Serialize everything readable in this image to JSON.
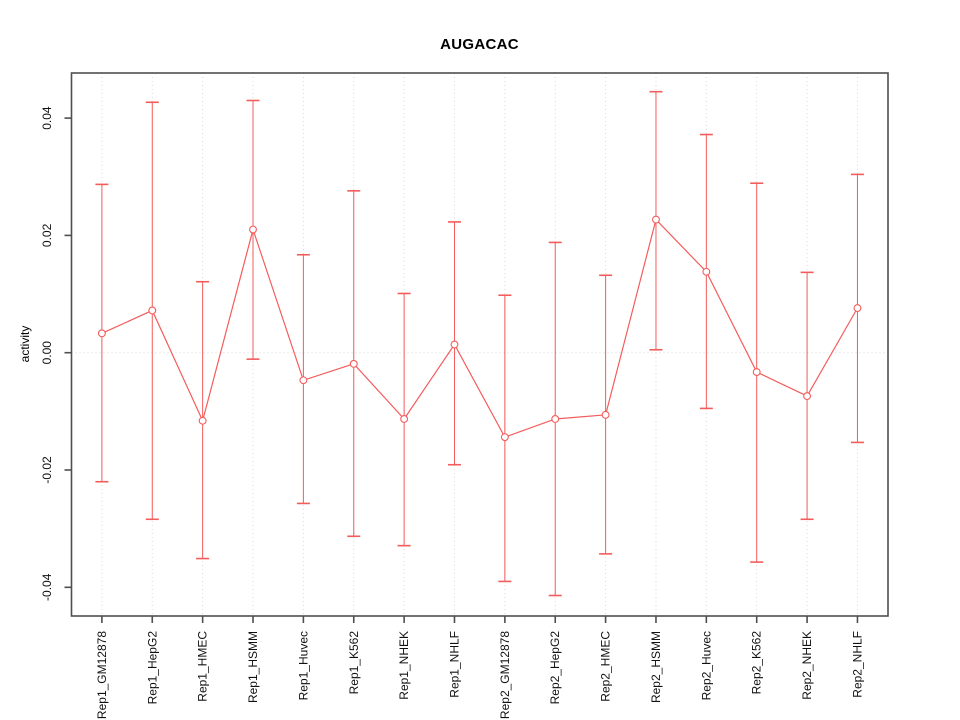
{
  "chart_data": {
    "type": "line",
    "title": "AUGACAC",
    "ylabel": "activity",
    "xlabel": "",
    "legend": "none",
    "grid": {
      "vertical_dotted_per_category": true,
      "horizontal_dotted_at_zero": true
    },
    "marker": "open-circle",
    "errorbars": true,
    "x": [
      "Rep1_GM12878",
      "Rep1_HepG2",
      "Rep1_HMEC",
      "Rep1_HSMM",
      "Rep1_Huvec",
      "Rep1_K562",
      "Rep1_NHEK",
      "Rep1_NHLF",
      "Rep2_GM12878",
      "Rep2_HepG2",
      "Rep2_HMEC",
      "Rep2_HSMM",
      "Rep2_Huvec",
      "Rep2_K562",
      "Rep2_NHEK",
      "Rep2_NHLF"
    ],
    "values": [
      0.0033,
      0.0072,
      -0.0116,
      0.021,
      -0.0047,
      -0.0019,
      -0.0113,
      0.0014,
      -0.0144,
      -0.0113,
      -0.0106,
      0.0227,
      0.0138,
      -0.0033,
      -0.0074,
      0.0076
    ],
    "upper_whisker": [
      0.0287,
      0.0427,
      0.0121,
      0.043,
      0.0167,
      0.0276,
      0.0101,
      0.0223,
      0.0098,
      0.0188,
      0.0132,
      0.0445,
      0.0372,
      0.0289,
      0.0137,
      0.0304
    ],
    "lower_whisker": [
      -0.022,
      -0.0284,
      -0.0351,
      -0.0011,
      -0.0257,
      -0.0313,
      -0.0329,
      -0.0191,
      -0.039,
      -0.0414,
      -0.0343,
      0.0005,
      -0.0095,
      -0.0357,
      -0.0284,
      -0.0153
    ],
    "ylim": [
      -0.0449,
      0.0478
    ],
    "yticks": [
      -0.04,
      -0.02,
      0,
      0.02,
      0.04
    ],
    "ytick_labels": [
      "-0.04",
      "-0.02",
      "0.00",
      "0.02",
      "0.04"
    ],
    "colors": {
      "series": "#f45c5c",
      "grid": "#d8d8d8",
      "axis": "#4f4f4f",
      "text": "#111111",
      "background": "#ffffff"
    }
  }
}
